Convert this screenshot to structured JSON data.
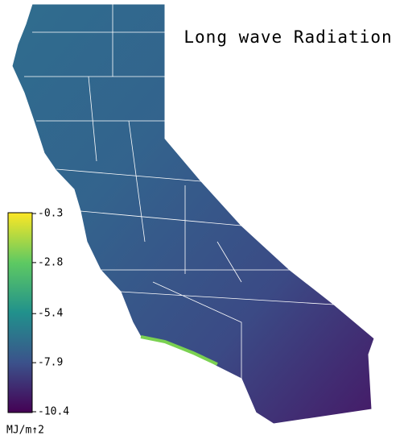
{
  "title": "Long wave Radiation",
  "colorbar": {
    "label": "MJ/m↑2",
    "clim": [
      -10.4,
      -0.3
    ],
    "ticks": [
      -0.3,
      -2.8,
      -5.4,
      -7.9,
      -10.4
    ],
    "colormap": [
      "#440154",
      "#3b528b",
      "#21918c",
      "#5ec962",
      "#fde725"
    ]
  }
}
